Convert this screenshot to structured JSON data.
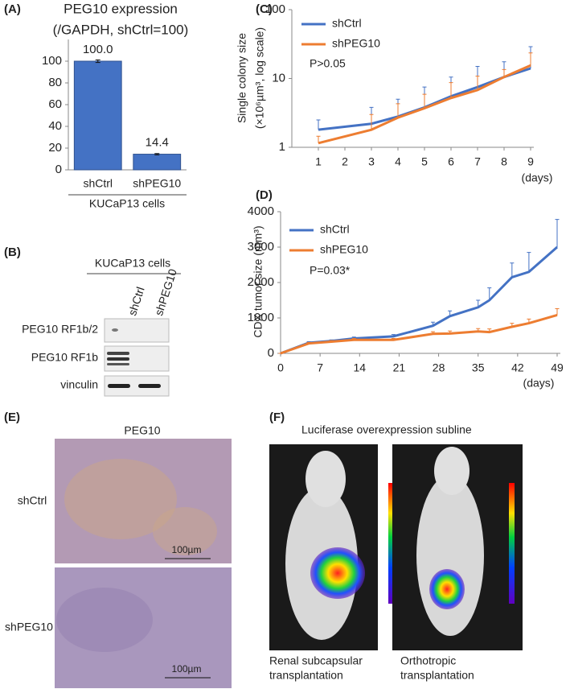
{
  "chart_data": [
    {
      "type": "bar",
      "panel_label": "(A)",
      "title": "PEG10 expression",
      "subtitle": "(/GAPDH, shCtrl=100)",
      "categories": [
        "shCtrl",
        "shPEG10"
      ],
      "values": [
        100.0,
        14.4
      ],
      "value_labels": [
        "100.0",
        "14.4"
      ],
      "errors": [
        1.2,
        0.6
      ],
      "color": "#4472c4",
      "xlabel": "KUCaP13 cells",
      "ylim": [
        0,
        120
      ],
      "yticks": [
        0,
        20,
        40,
        60,
        80,
        100
      ],
      "grid": false
    },
    {
      "type": "line",
      "panel_label": "(C)",
      "ylabel": [
        "Single colony size",
        "(×10⁶µm³, log scale)"
      ],
      "xlabel": "(days)",
      "x": [
        1,
        3,
        4,
        5,
        6,
        7,
        8,
        9
      ],
      "log_scale": true,
      "legend": "upper left",
      "annotation": "P>0.05",
      "series": [
        {
          "name": "shCtrl",
          "color": "#4472c4",
          "values": [
            1.8,
            2.2,
            2.8,
            3.8,
            5.5,
            7.5,
            10.5,
            14
          ],
          "errors": [
            0.7,
            1.6,
            2.2,
            3.7,
            5,
            7.5,
            7,
            15
          ]
        },
        {
          "name": "shPEG10",
          "color": "#ed7d31",
          "values": [
            1.15,
            1.8,
            2.7,
            3.7,
            5.2,
            6.8,
            10.5,
            15.5
          ],
          "errors": [
            0.3,
            1.2,
            1.6,
            2.2,
            3.5,
            4,
            3,
            8
          ]
        }
      ],
      "xlim": [
        0,
        9
      ],
      "xticks": [
        1,
        2,
        3,
        4,
        5,
        6,
        7,
        8,
        9
      ],
      "ylim": [
        1,
        100
      ],
      "yticks": [
        1,
        10,
        100
      ],
      "grid": false
    },
    {
      "type": "line",
      "panel_label": "(D)",
      "ylabel": [
        "CDX tumor size (mm³)"
      ],
      "xlabel": "(days)",
      "x": [
        0,
        5,
        9,
        13,
        20,
        27,
        30,
        35,
        37,
        41,
        44,
        49
      ],
      "log_scale": false,
      "legend": "upper left",
      "annotation": "P=0.03*",
      "series": [
        {
          "name": "shCtrl",
          "color": "#4472c4",
          "values": [
            0,
            300,
            350,
            420,
            480,
            780,
            1050,
            1300,
            1500,
            2150,
            2300,
            3000
          ],
          "errors": [
            0,
            30,
            30,
            40,
            50,
            100,
            150,
            200,
            350,
            400,
            550,
            780
          ]
        },
        {
          "name": "shPEG10",
          "color": "#ed7d31",
          "values": [
            0,
            280,
            330,
            380,
            380,
            550,
            560,
            620,
            600,
            750,
            850,
            1080
          ],
          "errors": [
            0,
            30,
            30,
            40,
            40,
            60,
            70,
            80,
            90,
            100,
            120,
            180
          ]
        }
      ],
      "xlim": [
        0,
        49
      ],
      "xticks": [
        0,
        7,
        14,
        21,
        28,
        35,
        42,
        49
      ],
      "ylim": [
        0,
        4000
      ],
      "yticks": [
        0,
        1000,
        2000,
        3000,
        4000
      ],
      "grid": false
    }
  ],
  "panels": {
    "B": {
      "label": "(B)",
      "group": "KUCaP13 cells",
      "lanes": [
        "shCtrl",
        "shPEG10"
      ],
      "rows": [
        "PEG10 RF1b/2",
        "PEG10 RF1b",
        "vinculin"
      ]
    },
    "E": {
      "label": "(E)",
      "title": "PEG10",
      "rows": [
        "shCtrl",
        "shPEG10"
      ],
      "scale_bars": [
        "100µm",
        "100µm"
      ]
    },
    "F": {
      "label": "(F)",
      "title": "Luciferase overexpression subline",
      "captions": [
        [
          "Renal subcapsular",
          "transplantation"
        ],
        [
          "Orthotropic",
          "transplantation"
        ]
      ]
    }
  }
}
